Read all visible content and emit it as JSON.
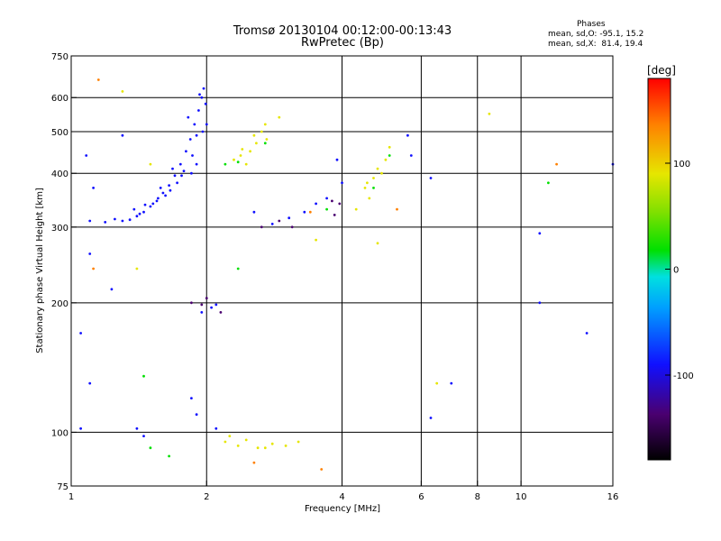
{
  "title": {
    "line1": "Tromsø 20130104 00:12:00-00:13:43",
    "line2": "RwPretec (Bp)"
  },
  "stats": {
    "heading": "Phases",
    "line_o": "mean, sd,O: -95.1, 15.2",
    "line_x": "mean, sd,X:  81.4, 19.4"
  },
  "colors": {
    "grid": "#000000",
    "axis": "#000000",
    "colorbar": [
      "#000000",
      "#4a0070",
      "#1010ff",
      "#00a0ff",
      "#00e0e0",
      "#00e000",
      "#80e000",
      "#e6e600",
      "#ff8000",
      "#ff0000"
    ]
  },
  "chart_data": {
    "type": "scatter",
    "x_scale": "log",
    "y_scale": "log",
    "xlabel": "Frequency [MHz]",
    "ylabel": "Stationary phase Virtual Height [km]",
    "xlim": [
      1,
      16
    ],
    "ylim": [
      75,
      750
    ],
    "x_ticks": [
      1,
      2,
      4,
      6,
      8,
      10,
      16
    ],
    "x_tick_labels": [
      "1",
      "2",
      "4",
      "6",
      "8",
      "10",
      "16"
    ],
    "y_ticks": [
      75,
      100,
      200,
      300,
      400,
      500,
      600,
      750
    ],
    "y_tick_labels": [
      "75",
      "100",
      "200",
      "300",
      "400",
      "500",
      "600",
      "750"
    ],
    "x_gridlines": [
      2,
      4,
      6,
      8,
      10
    ],
    "y_gridlines": [
      100,
      200,
      300,
      400,
      500,
      600
    ],
    "grid": true,
    "colorbar": {
      "label": "[deg]",
      "range": [
        -180,
        180
      ],
      "ticks": [
        100,
        0,
        -100
      ],
      "tick_labels": [
        "100",
        "0",
        "-100"
      ]
    },
    "series": [
      {
        "points": [
          [
            1.35,
            312
          ],
          [
            1.4,
            318
          ],
          [
            1.45,
            325
          ],
          [
            1.5,
            335
          ],
          [
            1.55,
            345
          ],
          [
            1.6,
            360
          ],
          [
            1.65,
            375
          ],
          [
            1.7,
            395
          ],
          [
            1.75,
            420
          ],
          [
            1.8,
            450
          ],
          [
            1.84,
            480
          ],
          [
            1.88,
            520
          ],
          [
            1.92,
            560
          ],
          [
            1.95,
            600
          ],
          [
            1.97,
            630
          ],
          [
            1.9,
            490
          ],
          [
            1.86,
            440
          ],
          [
            1.78,
            405
          ],
          [
            1.72,
            380
          ],
          [
            1.62,
            355
          ],
          [
            1.52,
            340
          ],
          [
            1.42,
            322
          ],
          [
            1.38,
            330
          ],
          [
            1.58,
            370
          ],
          [
            1.68,
            410
          ],
          [
            1.82,
            540
          ],
          [
            1.93,
            610
          ],
          [
            1.99,
            580
          ],
          [
            2.0,
            520
          ],
          [
            1.96,
            500
          ],
          [
            1.9,
            420
          ],
          [
            1.85,
            400
          ],
          [
            1.76,
            395
          ],
          [
            1.66,
            365
          ],
          [
            1.56,
            350
          ],
          [
            1.46,
            338
          ],
          [
            1.3,
            310
          ],
          [
            1.25,
            313
          ],
          [
            1.19,
            308
          ],
          [
            1.1,
            310
          ],
          [
            1.08,
            440
          ],
          [
            1.12,
            370
          ],
          [
            1.3,
            490
          ],
          [
            2.55,
            325
          ],
          [
            2.8,
            305
          ],
          [
            3.05,
            315
          ],
          [
            3.3,
            325
          ],
          [
            3.5,
            340
          ],
          [
            3.7,
            350
          ],
          [
            3.9,
            430
          ],
          [
            4.0,
            380
          ],
          [
            5.6,
            490
          ],
          [
            5.7,
            440
          ],
          [
            6.3,
            390
          ],
          [
            2.05,
            195
          ],
          [
            1.95,
            190
          ],
          [
            2.1,
            198
          ],
          [
            1.85,
            120
          ],
          [
            1.9,
            110
          ],
          [
            2.1,
            102
          ],
          [
            1.45,
            98
          ],
          [
            1.4,
            102
          ],
          [
            1.05,
            170
          ],
          [
            1.1,
            130
          ],
          [
            1.05,
            102
          ],
          [
            6.3,
            108
          ],
          [
            7.0,
            130
          ],
          [
            11.0,
            290
          ],
          [
            11.0,
            200
          ],
          [
            14.0,
            170
          ],
          [
            16.0,
            420
          ],
          [
            1.23,
            215
          ],
          [
            1.1,
            260
          ]
        ],
        "color": "#1010ff",
        "phase_deg": -95
      },
      {
        "points": [
          [
            2.3,
            430
          ],
          [
            2.38,
            440
          ],
          [
            2.45,
            420
          ],
          [
            2.5,
            450
          ],
          [
            2.58,
            470
          ],
          [
            2.65,
            500
          ],
          [
            2.7,
            520
          ],
          [
            2.72,
            480
          ],
          [
            2.4,
            455
          ],
          [
            2.55,
            490
          ],
          [
            4.5,
            370
          ],
          [
            4.6,
            350
          ],
          [
            4.7,
            390
          ],
          [
            4.8,
            410
          ],
          [
            4.9,
            400
          ],
          [
            5.0,
            430
          ],
          [
            5.1,
            460
          ],
          [
            4.55,
            380
          ],
          [
            2.2,
            95
          ],
          [
            2.35,
            93
          ],
          [
            2.45,
            96
          ],
          [
            2.6,
            92
          ],
          [
            2.8,
            94
          ],
          [
            3.0,
            93
          ],
          [
            3.2,
            95
          ],
          [
            2.25,
            98
          ],
          [
            2.9,
            540
          ],
          [
            8.5,
            550
          ],
          [
            1.5,
            420
          ],
          [
            1.3,
            620
          ],
          [
            3.5,
            280
          ],
          [
            4.3,
            330
          ],
          [
            4.8,
            275
          ],
          [
            6.5,
            130
          ],
          [
            1.4,
            240
          ],
          [
            2.7,
            92
          ]
        ],
        "color": "#e6e600",
        "phase_deg": 81
      },
      {
        "points": [
          [
            2.2,
            420
          ],
          [
            2.35,
            425
          ],
          [
            2.7,
            470
          ],
          [
            4.7,
            370
          ],
          [
            5.1,
            440
          ],
          [
            1.45,
            135
          ],
          [
            1.65,
            88
          ],
          [
            1.5,
            92
          ],
          [
            2.35,
            240
          ],
          [
            3.7,
            330
          ],
          [
            11.5,
            380
          ]
        ],
        "color": "#00e000",
        "phase_deg": 20
      },
      {
        "points": [
          [
            1.15,
            660
          ],
          [
            2.55,
            85
          ],
          [
            3.6,
            82
          ],
          [
            5.3,
            330
          ],
          [
            12.0,
            420
          ],
          [
            1.12,
            240
          ],
          [
            3.4,
            325
          ]
        ],
        "color": "#ff8000",
        "phase_deg": 140
      },
      {
        "points": [
          [
            1.85,
            200
          ],
          [
            1.95,
            198
          ],
          [
            2.0,
            205
          ],
          [
            2.15,
            190
          ],
          [
            2.65,
            300
          ],
          [
            2.9,
            310
          ],
          [
            3.1,
            300
          ],
          [
            3.8,
            345
          ],
          [
            3.85,
            320
          ],
          [
            3.95,
            340
          ]
        ],
        "color": "#4a0070",
        "phase_deg": -130
      }
    ]
  }
}
